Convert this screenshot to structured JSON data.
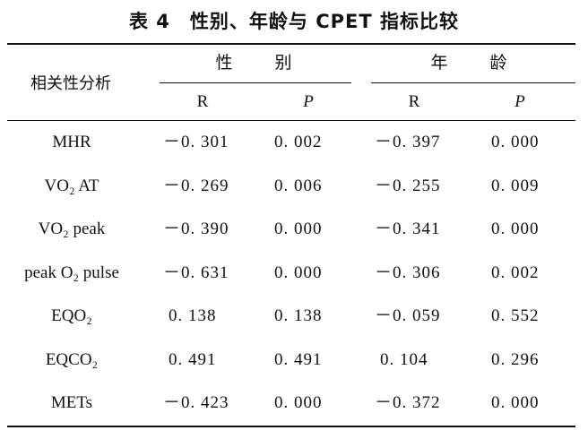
{
  "title": "表 4　性别、年龄与 CPET 指标比较",
  "corner_label": "相关性分析",
  "groups": [
    "性　别",
    "年　龄"
  ],
  "subheaders": [
    "R",
    "P",
    "R",
    "P"
  ],
  "rows": [
    {
      "metric": "MHR",
      "values": [
        "－0. 301",
        "0. 002",
        "－0. 397",
        "0. 000"
      ]
    },
    {
      "metric": "VO₂ AT",
      "values": [
        "－0. 269",
        "0. 006",
        "－0. 255",
        "0. 009"
      ]
    },
    {
      "metric": "VO₂ peak",
      "values": [
        "－0. 390",
        "0. 000",
        "－0. 341",
        "0. 000"
      ]
    },
    {
      "metric": "peak  O₂ pulse",
      "values": [
        "－0. 631",
        "0. 000",
        "－0. 306",
        "0. 002"
      ]
    },
    {
      "metric": "EQO₂",
      "values": [
        "0. 138",
        "0. 138",
        "－0. 059",
        "0. 552"
      ]
    },
    {
      "metric": "EQCO₂",
      "values": [
        "0. 491",
        "0. 491",
        "0. 104",
        "0. 296"
      ]
    },
    {
      "metric": "METs",
      "values": [
        "－0. 423",
        "0. 000",
        "－0. 372",
        "0. 000"
      ]
    }
  ]
}
